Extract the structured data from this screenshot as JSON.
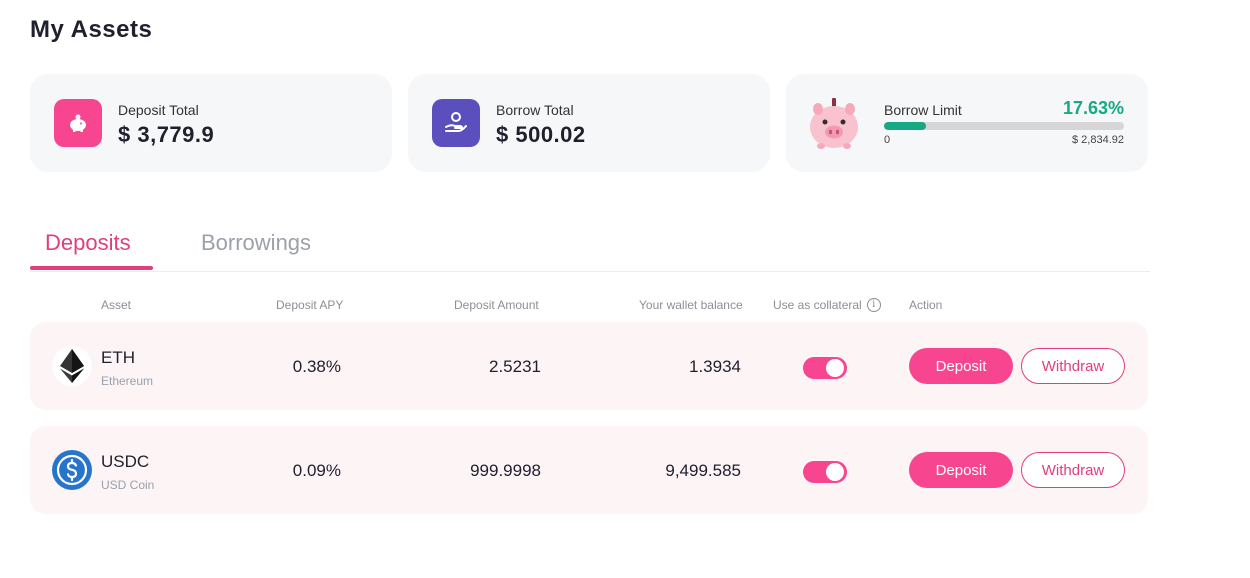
{
  "page": {
    "title": "My Assets"
  },
  "summary": {
    "deposit": {
      "label": "Deposit Total",
      "value": "$ 3,779.9",
      "icon": "piggy-bank-icon"
    },
    "borrow": {
      "label": "Borrow Total",
      "value": "$ 500.02",
      "icon": "hand-coin-icon"
    },
    "limit": {
      "label": "Borrow Limit",
      "percent_text": "17.63%",
      "percent": 17.63,
      "min": "0",
      "max": "$ 2,834.92",
      "icon": "piggy-illustration-icon"
    }
  },
  "tabs": [
    {
      "label": "Deposits",
      "active": true
    },
    {
      "label": "Borrowings",
      "active": false
    }
  ],
  "table": {
    "headers": {
      "asset": "Asset",
      "apy": "Deposit APY",
      "amount": "Deposit Amount",
      "wallet": "Your wallet balance",
      "collateral": "Use as collateral",
      "action": "Action"
    },
    "rows": [
      {
        "symbol": "ETH",
        "name": "Ethereum",
        "apy": "0.38%",
        "amount": "2.5231",
        "wallet": "1.3934",
        "collateral": true,
        "deposit_label": "Deposit",
        "withdraw_label": "Withdraw",
        "icon": "ethereum-icon"
      },
      {
        "symbol": "USDC",
        "name": "USD Coin",
        "apy": "0.09%",
        "amount": "999.9998",
        "wallet": "9,499.585",
        "collateral": true,
        "deposit_label": "Deposit",
        "withdraw_label": "Withdraw",
        "icon": "usdc-icon"
      }
    ]
  },
  "colors": {
    "accent": "#f7468f",
    "tab_active": "#e23d7e",
    "borrow_icon_bg": "#5b4fbe",
    "limit_green": "#17a884"
  }
}
